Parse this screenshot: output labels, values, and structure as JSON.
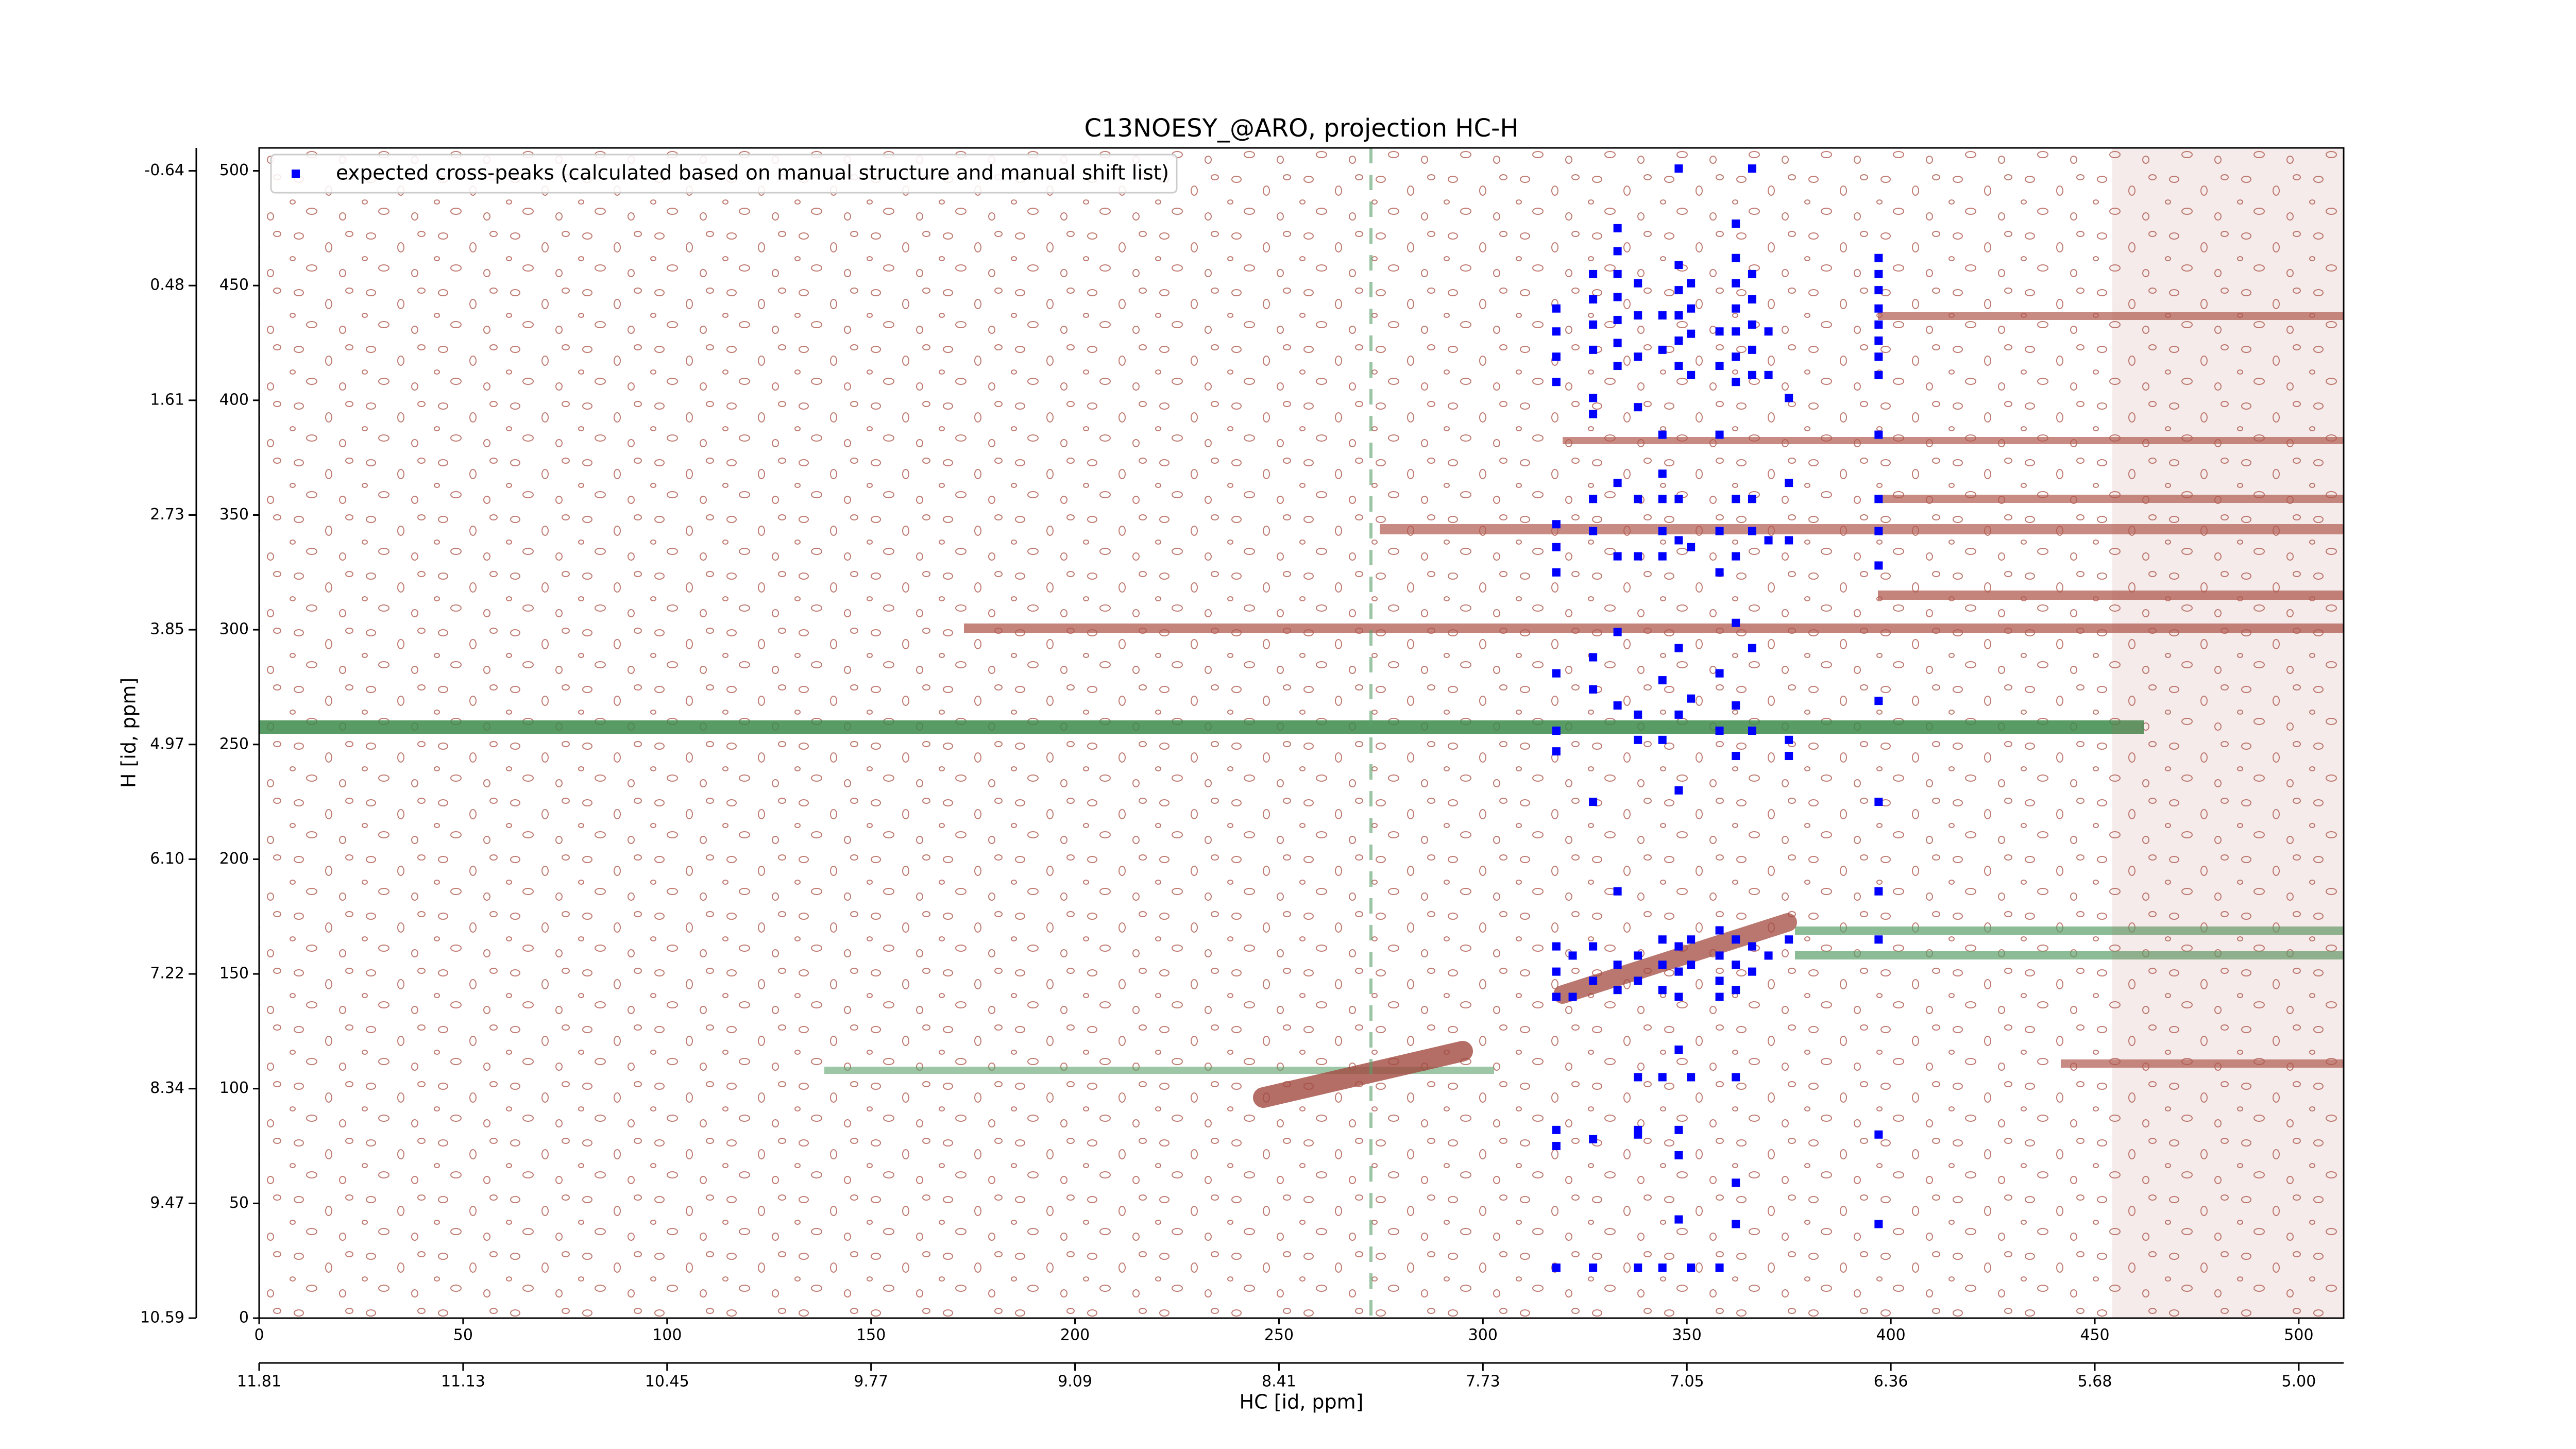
{
  "chart_data": {
    "type": "scatter",
    "title": "C13NOESY_@ARO, projection HC-H",
    "xlabel": "HC [id, ppm]",
    "ylabel": "H [id, ppm]",
    "xlim": [
      0,
      511
    ],
    "ylim": [
      0,
      510
    ],
    "xticks": [
      0,
      50,
      100,
      150,
      200,
      250,
      300,
      350,
      400,
      450,
      500
    ],
    "yticks": [
      0,
      50,
      100,
      150,
      200,
      250,
      300,
      350,
      400,
      450,
      500
    ],
    "x2ticks": [
      {
        "value": 0,
        "label": "11.81"
      },
      {
        "value": 50,
        "label": "11.13"
      },
      {
        "value": 100,
        "label": "10.45"
      },
      {
        "value": 150,
        "label": "9.77"
      },
      {
        "value": 200,
        "label": "9.09"
      },
      {
        "value": 250,
        "label": "8.41"
      },
      {
        "value": 300,
        "label": "7.73"
      },
      {
        "value": 350,
        "label": "7.05"
      },
      {
        "value": 400,
        "label": "6.36"
      },
      {
        "value": 450,
        "label": "5.68"
      },
      {
        "value": 500,
        "label": "5.00"
      }
    ],
    "y2ticks": [
      {
        "value": 500,
        "label": "-0.64"
      },
      {
        "value": 450,
        "label": "0.48"
      },
      {
        "value": 400,
        "label": "1.61"
      },
      {
        "value": 350,
        "label": "2.73"
      },
      {
        "value": 300,
        "label": "3.85"
      },
      {
        "value": 250,
        "label": "4.97"
      },
      {
        "value": 200,
        "label": "6.10"
      },
      {
        "value": 150,
        "label": "7.22"
      },
      {
        "value": 100,
        "label": "8.34"
      },
      {
        "value": 50,
        "label": "9.47"
      },
      {
        "value": 0,
        "label": "10.59"
      }
    ],
    "legend": "upper left",
    "series": [
      {
        "name": "expected cross-peaks (calculated based on manual structure and manual shift list)",
        "color": "#0000ff",
        "x": [
          348,
          366,
          333,
          333,
          333,
          333,
          333,
          333,
          333,
          318,
          318,
          318,
          318,
          327,
          327,
          327,
          327,
          327,
          327,
          338,
          338,
          338,
          338,
          344,
          344,
          344,
          348,
          348,
          348,
          348,
          348,
          351,
          351,
          351,
          351,
          358,
          358,
          358,
          362,
          362,
          362,
          362,
          362,
          362,
          362,
          366,
          366,
          366,
          366,
          366,
          370,
          370,
          375,
          375,
          397,
          397,
          397,
          397,
          397,
          397,
          397,
          397,
          397,
          318,
          318,
          318,
          327,
          327,
          333,
          333,
          338,
          338,
          344,
          344,
          344,
          344,
          348,
          348,
          351,
          358,
          358,
          362,
          362,
          366,
          366,
          370,
          375,
          397,
          397,
          397,
          318,
          318,
          318,
          327,
          327,
          333,
          333,
          338,
          338,
          344,
          344,
          348,
          348,
          348,
          351,
          358,
          358,
          362,
          362,
          362,
          366,
          366,
          375,
          375,
          397,
          397,
          318,
          318,
          318,
          322,
          322,
          327,
          327,
          333,
          333,
          338,
          338,
          344,
          344,
          344,
          348,
          348,
          348,
          351,
          351,
          358,
          358,
          358,
          358,
          362,
          362,
          362,
          366,
          366,
          370,
          375,
          397,
          397,
          333,
          327,
          348,
          338,
          338,
          344,
          351,
          362,
          318,
          318,
          327,
          338,
          348,
          348,
          397,
          362,
          348,
          362,
          397,
          318,
          327,
          338,
          344,
          351,
          358
        ],
        "y": [
          501,
          501,
          475,
          465,
          455,
          445,
          435,
          425,
          415,
          440,
          430,
          419,
          408,
          455,
          444,
          433,
          422,
          401,
          394,
          451,
          437,
          419,
          397,
          437,
          422,
          385,
          459,
          448,
          437,
          426,
          415,
          451,
          440,
          429,
          411,
          430,
          415,
          385,
          477,
          462,
          451,
          440,
          430,
          419,
          408,
          455,
          444,
          433,
          422,
          411,
          430,
          411,
          401,
          364,
          462,
          455,
          448,
          440,
          433,
          426,
          419,
          411,
          385,
          346,
          336,
          325,
          357,
          343,
          364,
          332,
          357,
          332,
          368,
          357,
          343,
          332,
          357,
          339,
          336,
          343,
          325,
          357,
          332,
          357,
          343,
          339,
          339,
          357,
          343,
          328,
          281,
          256,
          247,
          288,
          274,
          299,
          267,
          263,
          252,
          278,
          252,
          292,
          263,
          230,
          270,
          281,
          256,
          303,
          267,
          245,
          292,
          256,
          252,
          245,
          269,
          225,
          162,
          151,
          140,
          158,
          140,
          162,
          147,
          154,
          143,
          158,
          147,
          165,
          154,
          143,
          162,
          151,
          140,
          165,
          154,
          169,
          158,
          147,
          140,
          165,
          154,
          143,
          162,
          151,
          158,
          165,
          186,
          165,
          186,
          225,
          117,
          105,
          80,
          105,
          105,
          105,
          82,
          75,
          78,
          82,
          82,
          71,
          80,
          59,
          43,
          41,
          41,
          22,
          22,
          22,
          22,
          22,
          22
        ]
      }
    ]
  }
}
